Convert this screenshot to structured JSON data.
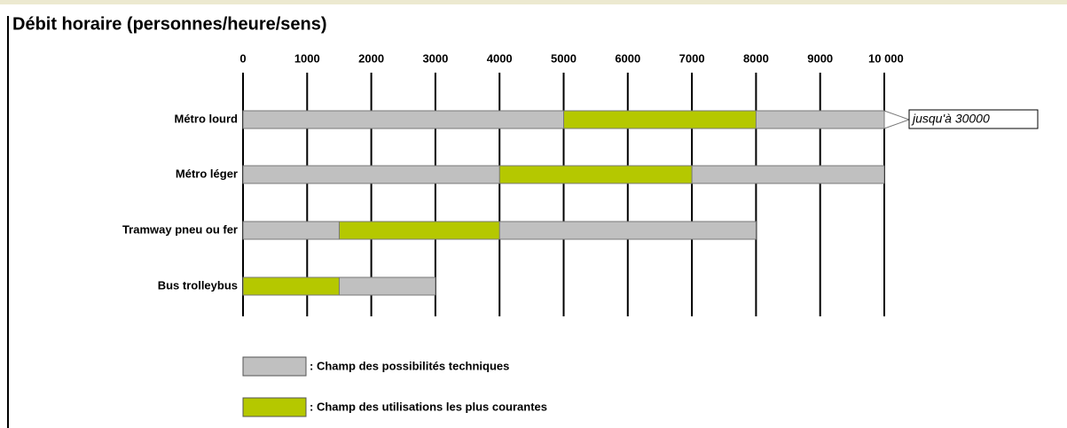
{
  "chart_data": {
    "type": "range-bar",
    "title": "Débit horaire (personnes/heure/sens)",
    "categories": [
      "Métro lourd",
      "Métro léger",
      "Tramway pneu ou fer",
      "Bus trolleybus"
    ],
    "series": [
      {
        "name": ": Champ des possibilités techniques",
        "color": "#c0c0c0",
        "start": [
          0,
          0,
          0,
          0
        ],
        "end": [
          10000,
          10000,
          8000,
          3000
        ]
      },
      {
        "name": ": Champ des utilisations les plus courantes",
        "color": "#b5c800",
        "start": [
          5000,
          4000,
          1500,
          0
        ],
        "end": [
          8000,
          7000,
          4000,
          1500
        ]
      }
    ],
    "xlim": [
      0,
      10000
    ],
    "xticks": [
      0,
      1000,
      2000,
      3000,
      4000,
      5000,
      6000,
      7000,
      8000,
      9000,
      {
        "value": 10000,
        "label": "10 000"
      }
    ],
    "annotation": "jusqu'à 30000"
  }
}
